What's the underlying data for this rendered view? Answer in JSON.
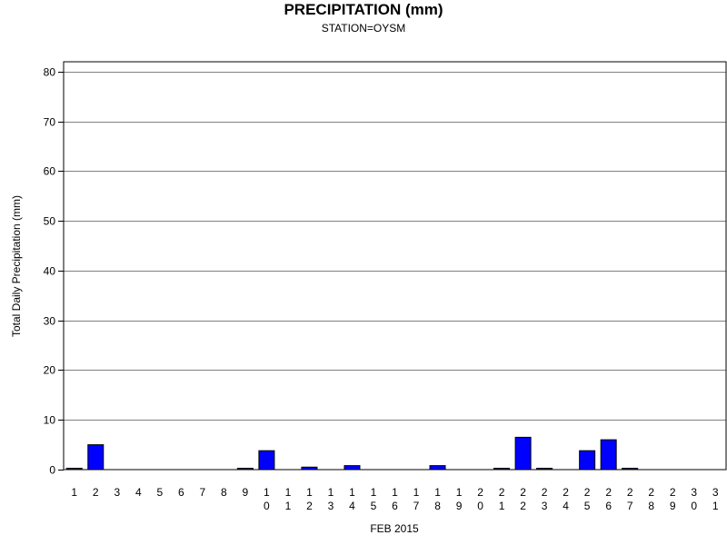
{
  "chart_data": {
    "type": "bar",
    "title": "PRECIPITATION (mm)",
    "subtitle": "STATION=OYSM",
    "xlabel": "FEB 2015",
    "ylabel": "Total Daily Precipitation (mm)",
    "categories": [
      "1",
      "2",
      "3",
      "4",
      "5",
      "6",
      "7",
      "8",
      "9",
      "10",
      "11",
      "12",
      "13",
      "14",
      "15",
      "16",
      "17",
      "18",
      "19",
      "20",
      "21",
      "22",
      "23",
      "24",
      "25",
      "26",
      "27",
      "28",
      "29",
      "30",
      "31"
    ],
    "values": [
      0.1,
      5.0,
      0,
      0,
      0,
      0,
      0,
      0,
      0.1,
      3.8,
      0,
      0.5,
      0,
      0.8,
      0,
      0,
      0,
      0.8,
      0,
      0,
      0.1,
      6.5,
      0.1,
      0,
      3.8,
      6.0,
      0.1,
      0,
      0,
      0,
      0
    ],
    "ylim": [
      0,
      80
    ],
    "yticks": [
      0,
      10,
      20,
      30,
      40,
      50,
      60,
      70,
      80
    ],
    "grid": true,
    "bar_color": "#0000ff"
  }
}
